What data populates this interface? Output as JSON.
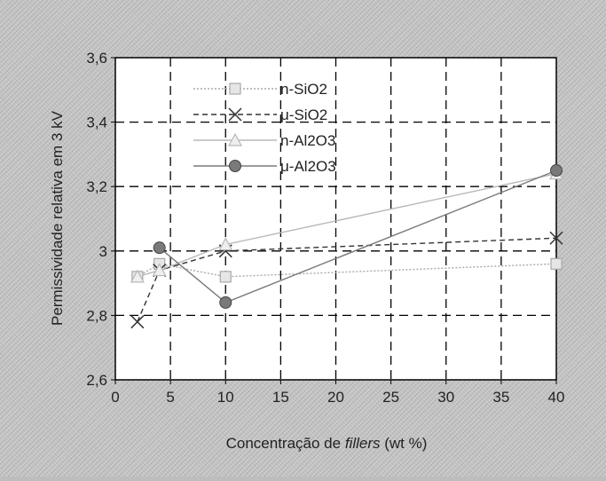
{
  "chart_data": {
    "type": "line",
    "title": "",
    "xlabel_prefix": "Concentração de ",
    "xlabel_italic": "fillers",
    "xlabel_suffix": " (wt %)",
    "ylabel": "Permissividade relativa em 3 kV",
    "xlim": [
      0,
      40
    ],
    "ylim": [
      2.6,
      3.6
    ],
    "x_ticks": [
      0,
      5,
      10,
      15,
      20,
      25,
      30,
      35,
      40
    ],
    "x_tick_labels": [
      "0",
      "5",
      "10",
      "15",
      "20",
      "25",
      "30",
      "35",
      "40"
    ],
    "y_ticks": [
      2.6,
      2.8,
      3.0,
      3.2,
      3.4,
      3.6
    ],
    "y_tick_labels": [
      "2,6",
      "2,8",
      "3",
      "3,2",
      "3,4",
      "3,6"
    ],
    "grid": true,
    "legend_position": "top-left",
    "series": [
      {
        "name": "n-SiO2",
        "marker": "square",
        "color": "#a9a9a9",
        "dash": "2,2",
        "points": [
          [
            2,
            2.92
          ],
          [
            4,
            2.96
          ],
          [
            10,
            2.92
          ],
          [
            40,
            2.96
          ]
        ]
      },
      {
        "name": "μ-SiO2",
        "marker": "x",
        "color": "#333333",
        "dash": "6,4",
        "points": [
          [
            2,
            2.78
          ],
          [
            4,
            2.94
          ],
          [
            10,
            3.0
          ],
          [
            40,
            3.04
          ]
        ]
      },
      {
        "name": "n-Al2O3",
        "marker": "triangle",
        "color": "#b8b8b8",
        "dash": "",
        "points": [
          [
            2,
            2.92
          ],
          [
            4,
            2.94
          ],
          [
            10,
            3.02
          ],
          [
            40,
            3.24
          ]
        ]
      },
      {
        "name": "μ-Al2O3",
        "marker": "circle",
        "color": "#7a7a7a",
        "dash": "",
        "points": [
          [
            4,
            3.01
          ],
          [
            10,
            2.84
          ],
          [
            40,
            3.25
          ]
        ]
      }
    ]
  }
}
